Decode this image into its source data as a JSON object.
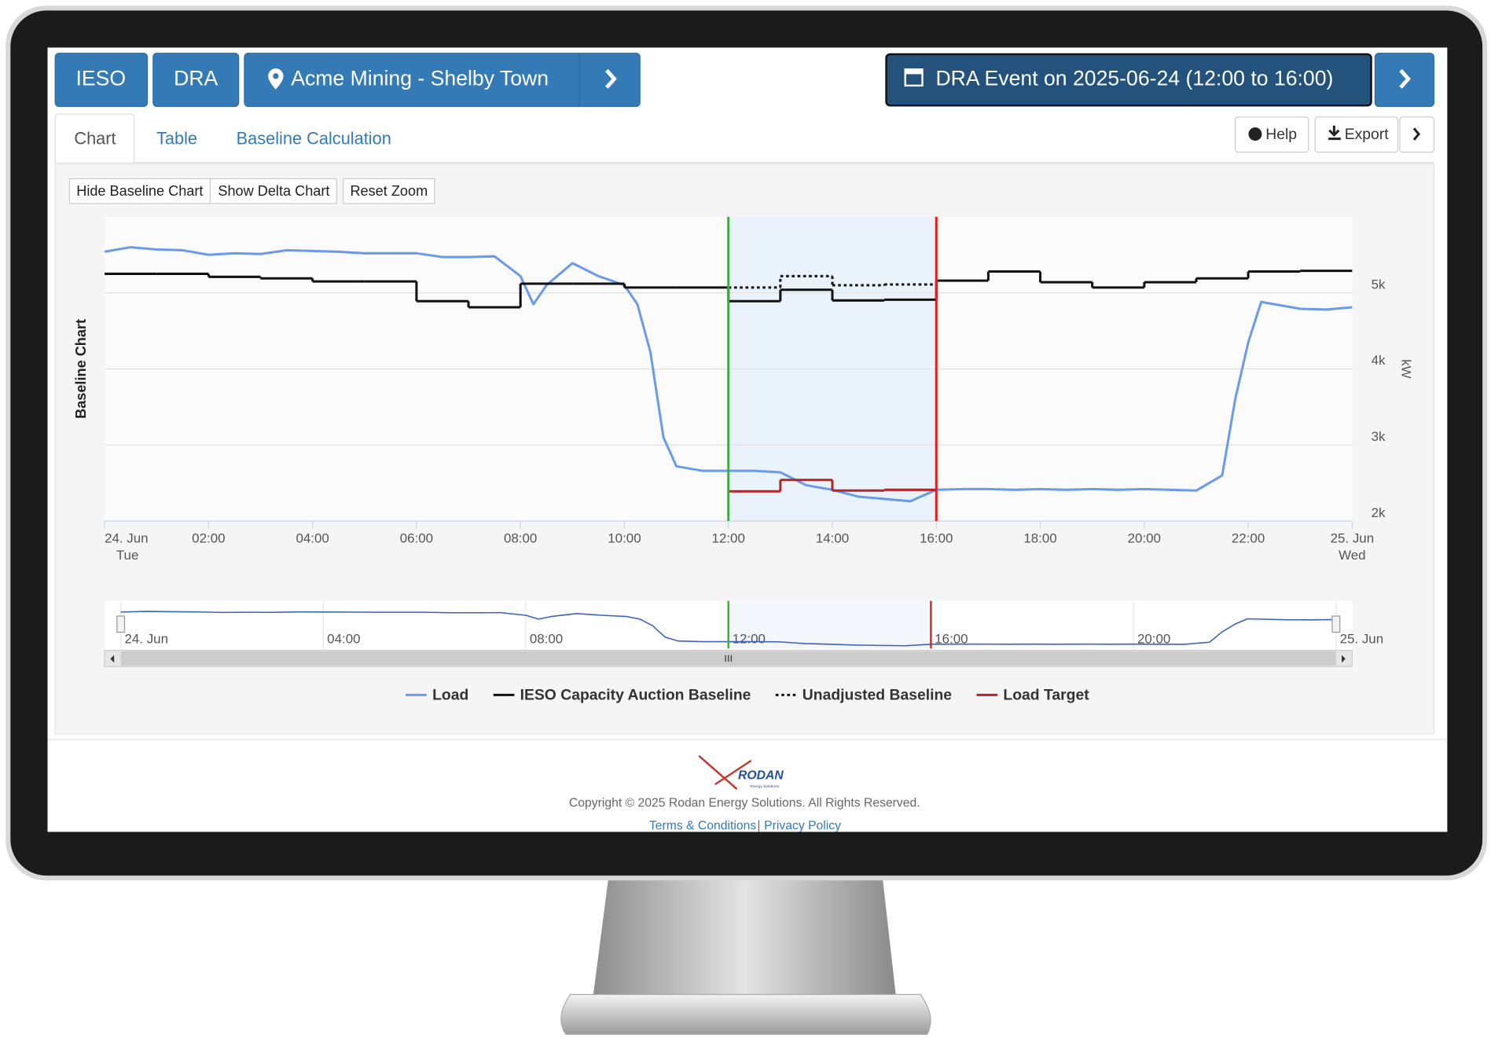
{
  "nav": {
    "org": "IESO",
    "program": "DRA",
    "site": "Acme Mining - Shelby Town",
    "event": "DRA Event on 2025-06-24 (12:00 to 16:00)"
  },
  "tabs": [
    "Chart",
    "Table",
    "Baseline Calculation"
  ],
  "actions": [
    "Help",
    "Export"
  ],
  "toolbar": [
    "Hide Baseline Chart",
    "Show Delta Chart",
    "Reset Zoom"
  ],
  "chart_data": {
    "type": "line",
    "ylabel": "Baseline Chart",
    "y_unit": "kW",
    "xlim": [
      0,
      24
    ],
    "xticks": [
      {
        "value": 0,
        "label": "24. Jun"
      },
      {
        "value": 2,
        "label": "02:00"
      },
      {
        "value": 4,
        "label": "04:00"
      },
      {
        "value": 6,
        "label": "06:00"
      },
      {
        "value": 8,
        "label": "08:00"
      },
      {
        "value": 10,
        "label": "10:00"
      },
      {
        "value": 12,
        "label": "12:00"
      },
      {
        "value": 14,
        "label": "14:00"
      },
      {
        "value": 16,
        "label": "16:00"
      },
      {
        "value": 18,
        "label": "18:00"
      },
      {
        "value": 20,
        "label": "20:00"
      },
      {
        "value": 22,
        "label": "22:00"
      },
      {
        "value": 24,
        "label": "25. Jun"
      }
    ],
    "day_labels": [
      {
        "value": 0,
        "label": "Tue"
      },
      {
        "value": 24,
        "label": "Wed"
      }
    ],
    "ylim": [
      2000,
      6000
    ],
    "yticks": [
      {
        "value": 2000,
        "label": "2k"
      },
      {
        "value": 3000,
        "label": "3k"
      },
      {
        "value": 4000,
        "label": "4k"
      },
      {
        "value": 5000,
        "label": "5k"
      }
    ],
    "grid": true,
    "event": {
      "start": 12,
      "end": 16,
      "start_color": "#2db82d",
      "end_color": "#e02020",
      "fill": "#eaf2fb"
    },
    "series": [
      {
        "name": "Load",
        "color": "#6b9be6",
        "style": "solid",
        "step": false,
        "x": [
          0,
          0.5,
          1,
          1.5,
          2,
          2.5,
          3,
          3.5,
          4,
          4.5,
          5,
          5.5,
          6,
          6.5,
          7,
          7.5,
          8,
          8.25,
          8.5,
          9,
          9.5,
          10,
          10.25,
          10.5,
          10.75,
          11,
          11.5,
          12,
          12.5,
          13,
          13.5,
          14,
          14.5,
          15,
          15.5,
          16,
          16.5,
          17,
          17.5,
          18,
          18.5,
          19,
          19.5,
          20,
          20.5,
          21,
          21.5,
          21.75,
          22,
          22.25,
          22.5,
          23,
          23.5,
          24
        ],
        "values": [
          5540,
          5600,
          5570,
          5560,
          5500,
          5520,
          5510,
          5560,
          5550,
          5540,
          5520,
          5520,
          5520,
          5470,
          5470,
          5480,
          5220,
          4850,
          5100,
          5390,
          5220,
          5100,
          4850,
          4220,
          3100,
          2720,
          2660,
          2660,
          2660,
          2640,
          2470,
          2410,
          2320,
          2290,
          2260,
          2410,
          2420,
          2420,
          2410,
          2420,
          2410,
          2420,
          2410,
          2420,
          2410,
          2400,
          2600,
          3600,
          4350,
          4880,
          4850,
          4790,
          4780,
          4810
        ]
      },
      {
        "name": "IESO Capacity Auction Baseline",
        "color": "#111111",
        "style": "solid",
        "step": true,
        "x": [
          0,
          1,
          2,
          3,
          4,
          5,
          6,
          7,
          8,
          9,
          10,
          11,
          12,
          13,
          14,
          15,
          16,
          17,
          18,
          19,
          20,
          21,
          22,
          23,
          24
        ],
        "values": [
          5250,
          5250,
          5210,
          5190,
          5150,
          5150,
          4890,
          4810,
          5120,
          5120,
          5070,
          5070,
          4890,
          5040,
          4900,
          4910,
          5160,
          5280,
          5140,
          5070,
          5140,
          5190,
          5280,
          5290,
          null
        ]
      },
      {
        "name": "Unadjusted Baseline",
        "color": "#111111",
        "style": "dotted",
        "step": true,
        "x": [
          12,
          13,
          14,
          15,
          16
        ],
        "values": [
          5070,
          5220,
          5100,
          5110,
          null
        ]
      },
      {
        "name": "Load Target",
        "color": "#b52525",
        "style": "solid",
        "step": true,
        "x": [
          12,
          13,
          14,
          15,
          16
        ],
        "values": [
          2390,
          2540,
          2400,
          2410,
          null
        ]
      }
    ],
    "navigator_ticks": [
      {
        "value": 0,
        "label": "24. Jun"
      },
      {
        "value": 4,
        "label": "04:00"
      },
      {
        "value": 8,
        "label": "08:00"
      },
      {
        "value": 12,
        "label": "12:00"
      },
      {
        "value": 16,
        "label": "16:00"
      },
      {
        "value": 20,
        "label": "20:00"
      },
      {
        "value": 24,
        "label": "25. Jun"
      }
    ]
  },
  "footer": {
    "logo": "RODAN",
    "logo_sub": "Energy Solutions",
    "copyright": "Copyright © 2025 Rodan Energy Solutions. All Rights Reserved.",
    "terms": "Terms & Conditions",
    "separator": "|",
    "privacy": "Privacy Policy"
  }
}
